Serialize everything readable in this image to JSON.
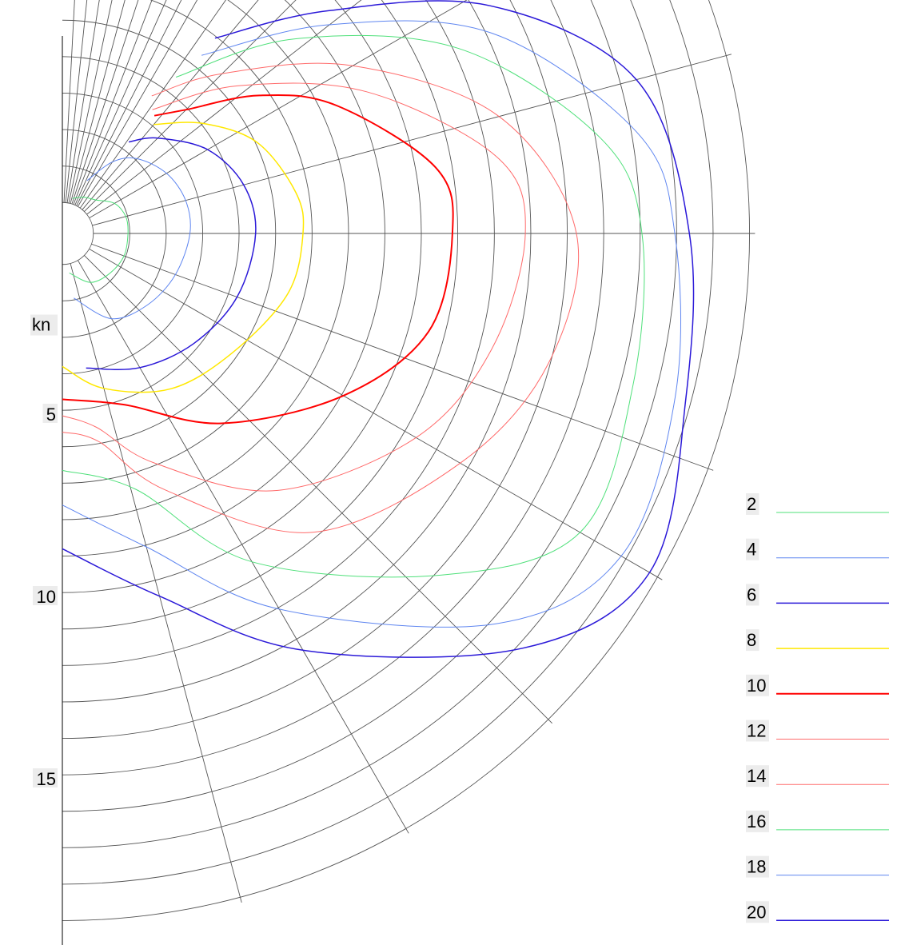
{
  "chart_data": {
    "type": "line",
    "projection": "polar",
    "angle_range_deg": [
      0,
      180
    ],
    "radial_unit": "kn",
    "radial_tick_labels": [
      "5",
      "10",
      "15"
    ],
    "radial_max": 19,
    "radial_step": 1,
    "radial_min": 0.85,
    "angle_grid_deg": [
      0,
      3,
      6,
      9,
      12,
      15,
      18,
      21,
      24,
      27,
      30,
      35,
      40,
      45,
      52,
      60,
      75,
      90,
      110,
      120,
      135,
      150,
      165,
      180
    ],
    "legend_position": "bottom-right",
    "series": [
      {
        "name": "2",
        "color": "#4fe07a",
        "width": 1,
        "points": [
          [
            16,
            1.0
          ],
          [
            30,
            1.15
          ],
          [
            45,
            1.3
          ],
          [
            60,
            1.65
          ],
          [
            75,
            1.8
          ],
          [
            90,
            1.8
          ],
          [
            110,
            1.8
          ],
          [
            130,
            1.7
          ],
          [
            150,
            1.55
          ],
          [
            170,
            1.1
          ]
        ]
      },
      {
        "name": "4",
        "color": "#5f86f0",
        "width": 1,
        "points": [
          [
            25,
            1.6
          ],
          [
            35,
            2.4
          ],
          [
            45,
            2.9
          ],
          [
            60,
            3.3
          ],
          [
            75,
            3.5
          ],
          [
            90,
            3.5
          ],
          [
            110,
            3.3
          ],
          [
            130,
            3.05
          ],
          [
            150,
            2.7
          ],
          [
            170,
            1.8
          ]
        ]
      },
      {
        "name": "6",
        "color": "#2a18d8",
        "width": 1.5,
        "points": [
          [
            36,
            3.1
          ],
          [
            45,
            3.7
          ],
          [
            60,
            4.6
          ],
          [
            75,
            5.15
          ],
          [
            90,
            5.3
          ],
          [
            110,
            5.1
          ],
          [
            130,
            4.7
          ],
          [
            150,
            4.25
          ],
          [
            170,
            3.75
          ]
        ]
      },
      {
        "name": "8",
        "color": "#ffe800",
        "width": 1.5,
        "points": [
          [
            40,
            3.9
          ],
          [
            52,
            4.9
          ],
          [
            65,
            5.9
          ],
          [
            80,
            6.5
          ],
          [
            90,
            6.6
          ],
          [
            105,
            6.4
          ],
          [
            125,
            5.7
          ],
          [
            145,
            5.2
          ],
          [
            165,
            4.4
          ],
          [
            180,
            3.65
          ]
        ]
      },
      {
        "name": "10",
        "color": "#ff0000",
        "width": 2,
        "points": [
          [
            38,
            4.1
          ],
          [
            45,
            4.8
          ],
          [
            55,
            6.6
          ],
          [
            65,
            8.3
          ],
          [
            80,
            10.4
          ],
          [
            90,
            10.7
          ],
          [
            105,
            10.4
          ],
          [
            120,
            8.9
          ],
          [
            140,
            6.8
          ],
          [
            160,
            5.0
          ],
          [
            180,
            4.55
          ]
        ]
      },
      {
        "name": "12",
        "color": "#ff6a6a",
        "width": 1,
        "points": [
          [
            36,
            4.2
          ],
          [
            50,
            6.3
          ],
          [
            65,
            9.2
          ],
          [
            80,
            12.1
          ],
          [
            90,
            12.7
          ],
          [
            105,
            12.2
          ],
          [
            120,
            11.2
          ],
          [
            140,
            9.2
          ],
          [
            158,
            6.8
          ],
          [
            170,
            5.4
          ],
          [
            180,
            5.0
          ]
        ]
      },
      {
        "name": "14",
        "color": "#ff6a6a",
        "width": 1,
        "points": [
          [
            33,
            4.5
          ],
          [
            45,
            6.2
          ],
          [
            60,
            9.2
          ],
          [
            75,
            12.4
          ],
          [
            90,
            14.1
          ],
          [
            105,
            13.8
          ],
          [
            120,
            12.6
          ],
          [
            140,
            10.7
          ],
          [
            158,
            7.6
          ],
          [
            170,
            5.8
          ],
          [
            180,
            5.45
          ]
        ]
      },
      {
        "name": "16",
        "color": "#4fe07a",
        "width": 1,
        "points": [
          [
            36,
            5.3
          ],
          [
            50,
            8.3
          ],
          [
            65,
            12.0
          ],
          [
            80,
            15.0
          ],
          [
            90,
            15.9
          ],
          [
            105,
            16.2
          ],
          [
            120,
            16.4
          ],
          [
            132,
            14.0
          ],
          [
            150,
            10.4
          ],
          [
            164,
            7.3
          ],
          [
            180,
            6.5
          ]
        ]
      },
      {
        "name": "18",
        "color": "#5f86f0",
        "width": 1,
        "points": [
          [
            38,
            6.2
          ],
          [
            52,
            9.3
          ],
          [
            65,
            13.0
          ],
          [
            80,
            16.0
          ],
          [
            90,
            16.8
          ],
          [
            105,
            17.4
          ],
          [
            120,
            17.7
          ],
          [
            132,
            16.0
          ],
          [
            150,
            11.9
          ],
          [
            165,
            8.9
          ],
          [
            180,
            7.45
          ]
        ]
      },
      {
        "name": "20",
        "color": "#2a18d8",
        "width": 1.5,
        "points": [
          [
            38,
            6.8
          ],
          [
            50,
            9.5
          ],
          [
            62,
            13.3
          ],
          [
            75,
            16.3
          ],
          [
            90,
            17.2
          ],
          [
            105,
            17.7
          ],
          [
            120,
            18.6
          ],
          [
            132,
            17.0
          ],
          [
            150,
            13.2
          ],
          [
            165,
            10.3
          ],
          [
            180,
            8.65
          ]
        ]
      }
    ]
  }
}
